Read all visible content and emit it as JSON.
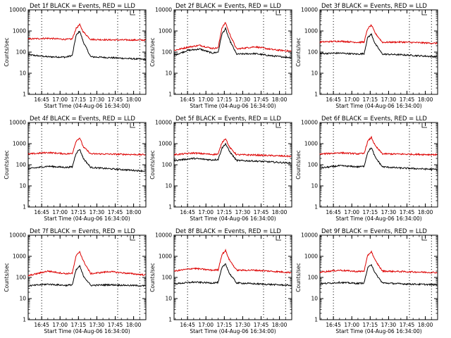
{
  "figure": {
    "panel_count": 9,
    "colors": {
      "events": "#000000",
      "lld": "#dd0000",
      "axes": "#000000",
      "background": "#ffffff"
    }
  },
  "chart_data": [
    {
      "type": "line",
      "title": "Det 1f BLACK = Events, RED = LLD",
      "xlabel": "Start Time (04-Aug-06 16:34:00)",
      "ylabel": "Counts/sec",
      "yscale": "log",
      "ylim": [
        1,
        10000
      ],
      "xlim": [
        "16:34",
        "18:10"
      ],
      "xticks": [
        "16:45",
        "17:00",
        "17:15",
        "17:30",
        "17:45",
        "18:00"
      ],
      "yticks": [
        "1",
        "10",
        "100",
        "1000",
        "10000"
      ],
      "vlines_dotted": [
        "16:45",
        "17:47",
        "18:05"
      ],
      "grid": false,
      "legend": "title",
      "series": [
        {
          "name": "Events",
          "color": "#000000",
          "times": [
            "16:34",
            "16:50",
            "17:05",
            "17:10",
            "17:13",
            "17:16",
            "17:19",
            "17:25",
            "17:40",
            "18:10"
          ],
          "values": [
            75,
            60,
            58,
            70,
            600,
            1000,
            300,
            60,
            55,
            45
          ]
        },
        {
          "name": "LLD",
          "color": "#dd0000",
          "times": [
            "16:34",
            "16:50",
            "17:05",
            "17:10",
            "17:13",
            "17:16",
            "17:19",
            "17:25",
            "17:40",
            "18:10"
          ],
          "values": [
            420,
            450,
            400,
            420,
            1300,
            2000,
            900,
            400,
            380,
            370
          ]
        }
      ]
    },
    {
      "type": "line",
      "title": "Det 2f BLACK = Events, RED = LLD",
      "xlabel": "Start Time (04-Aug-06 16:34:00)",
      "ylabel": "Counts/sec",
      "yscale": "log",
      "ylim": [
        1,
        10000
      ],
      "xlim": [
        "16:34",
        "18:10"
      ],
      "xticks": [
        "16:45",
        "17:00",
        "17:15",
        "17:30",
        "17:45",
        "18:00"
      ],
      "yticks": [
        "1",
        "10",
        "100",
        "1000",
        "10000"
      ],
      "vlines_dotted": [
        "16:45",
        "17:47",
        "18:05"
      ],
      "grid": false,
      "legend": "title",
      "series": [
        {
          "name": "Events",
          "color": "#000000",
          "times": [
            "16:34",
            "16:45",
            "16:55",
            "17:05",
            "17:10",
            "17:13",
            "17:16",
            "17:19",
            "17:25",
            "17:40",
            "17:55",
            "18:10"
          ],
          "values": [
            70,
            120,
            140,
            90,
            100,
            700,
            1300,
            400,
            80,
            85,
            65,
            55
          ]
        },
        {
          "name": "LLD",
          "color": "#dd0000",
          "times": [
            "16:34",
            "16:45",
            "16:55",
            "17:05",
            "17:10",
            "17:13",
            "17:16",
            "17:19",
            "17:25",
            "17:40",
            "17:55",
            "18:10"
          ],
          "values": [
            120,
            170,
            210,
            150,
            160,
            1400,
            2500,
            800,
            140,
            180,
            130,
            110
          ]
        }
      ]
    },
    {
      "type": "line",
      "title": "Det 3f BLACK = Events, RED = LLD",
      "xlabel": "Start Time (04-Aug-06 16:34:00)",
      "ylabel": "Counts/sec",
      "yscale": "log",
      "ylim": [
        1,
        10000
      ],
      "xlim": [
        "16:34",
        "18:10"
      ],
      "xticks": [
        "16:45",
        "17:00",
        "17:15",
        "17:30",
        "17:45",
        "18:00"
      ],
      "yticks": [
        "1",
        "10",
        "100",
        "1000",
        "10000"
      ],
      "vlines_dotted": [
        "16:45",
        "17:47",
        "18:05"
      ],
      "grid": false,
      "legend": "title",
      "series": [
        {
          "name": "Events",
          "color": "#000000",
          "times": [
            "16:34",
            "16:50",
            "17:05",
            "17:10",
            "17:13",
            "17:16",
            "17:19",
            "17:25",
            "17:40",
            "18:10"
          ],
          "values": [
            85,
            90,
            80,
            85,
            500,
            700,
            250,
            80,
            75,
            60
          ]
        },
        {
          "name": "LLD",
          "color": "#dd0000",
          "times": [
            "16:34",
            "16:50",
            "17:05",
            "17:10",
            "17:13",
            "17:16",
            "17:19",
            "17:25",
            "17:40",
            "18:10"
          ],
          "values": [
            300,
            330,
            290,
            300,
            1300,
            1900,
            800,
            290,
            300,
            260
          ]
        }
      ]
    },
    {
      "type": "line",
      "title": "Det 4f BLACK = Events, RED = LLD",
      "xlabel": "Start Time (04-Aug-06 16:34:00)",
      "ylabel": "Counts/sec",
      "yscale": "log",
      "ylim": [
        1,
        10000
      ],
      "xlim": [
        "16:34",
        "18:10"
      ],
      "xticks": [
        "16:45",
        "17:00",
        "17:15",
        "17:30",
        "17:45",
        "18:00"
      ],
      "yticks": [
        "1",
        "10",
        "100",
        "1000",
        "10000"
      ],
      "vlines_dotted": [
        "16:45",
        "17:47",
        "18:05"
      ],
      "grid": false,
      "legend": "title",
      "series": [
        {
          "name": "Events",
          "color": "#000000",
          "times": [
            "16:34",
            "16:50",
            "17:05",
            "17:10",
            "17:13",
            "17:16",
            "17:19",
            "17:25",
            "17:40",
            "18:10"
          ],
          "values": [
            65,
            85,
            75,
            80,
            350,
            550,
            200,
            75,
            65,
            50
          ]
        },
        {
          "name": "LLD",
          "color": "#dd0000",
          "times": [
            "16:34",
            "16:50",
            "17:05",
            "17:10",
            "17:13",
            "17:16",
            "17:19",
            "17:25",
            "17:40",
            "18:10"
          ],
          "values": [
            320,
            380,
            330,
            340,
            1300,
            1900,
            700,
            330,
            320,
            300
          ]
        }
      ]
    },
    {
      "type": "line",
      "title": "Det 5f BLACK = Events, RED = LLD",
      "xlabel": "Start Time (04-Aug-06 16:34:00)",
      "ylabel": "Counts/sec",
      "yscale": "log",
      "ylim": [
        1,
        10000
      ],
      "xlim": [
        "16:34",
        "18:10"
      ],
      "xticks": [
        "16:45",
        "17:00",
        "17:15",
        "17:30",
        "17:45",
        "18:00"
      ],
      "yticks": [
        "1",
        "10",
        "100",
        "1000",
        "10000"
      ],
      "vlines_dotted": [
        "16:45",
        "17:47",
        "18:05"
      ],
      "grid": false,
      "legend": "title",
      "series": [
        {
          "name": "Events",
          "color": "#000000",
          "times": [
            "16:34",
            "16:50",
            "17:05",
            "17:10",
            "17:13",
            "17:16",
            "17:19",
            "17:25",
            "17:40",
            "18:10"
          ],
          "values": [
            160,
            200,
            170,
            180,
            600,
            1000,
            450,
            160,
            150,
            120
          ]
        },
        {
          "name": "LLD",
          "color": "#dd0000",
          "times": [
            "16:34",
            "16:50",
            "17:05",
            "17:10",
            "17:13",
            "17:16",
            "17:19",
            "17:25",
            "17:40",
            "18:10"
          ],
          "values": [
            300,
            360,
            310,
            320,
            1100,
            1800,
            700,
            300,
            290,
            250
          ]
        }
      ]
    },
    {
      "type": "line",
      "title": "Det 6f BLACK = Events, RED = LLD",
      "xlabel": "Start Time (04-Aug-06 16:34:00)",
      "ylabel": "Counts/sec",
      "yscale": "log",
      "ylim": [
        1,
        10000
      ],
      "xlim": [
        "16:34",
        "18:10"
      ],
      "xticks": [
        "16:45",
        "17:00",
        "17:15",
        "17:30",
        "17:45",
        "18:00"
      ],
      "yticks": [
        "1",
        "10",
        "100",
        "1000",
        "10000"
      ],
      "vlines_dotted": [
        "16:45",
        "17:47",
        "18:05"
      ],
      "grid": false,
      "legend": "title",
      "series": [
        {
          "name": "Events",
          "color": "#000000",
          "times": [
            "16:34",
            "16:50",
            "17:05",
            "17:10",
            "17:13",
            "17:16",
            "17:19",
            "17:25",
            "17:40",
            "18:10"
          ],
          "values": [
            70,
            90,
            80,
            85,
            400,
            650,
            230,
            80,
            70,
            60
          ]
        },
        {
          "name": "LLD",
          "color": "#dd0000",
          "times": [
            "16:34",
            "16:50",
            "17:05",
            "17:10",
            "17:13",
            "17:16",
            "17:19",
            "17:25",
            "17:40",
            "18:10"
          ],
          "values": [
            320,
            370,
            330,
            340,
            1300,
            2000,
            800,
            330,
            320,
            300
          ]
        }
      ]
    },
    {
      "type": "line",
      "title": "Det 7f BLACK = Events, RED = LLD",
      "xlabel": "Start Time (04-Aug-06 16:34:00)",
      "ylabel": "Counts/sec",
      "yscale": "log",
      "ylim": [
        1,
        10000
      ],
      "xlim": [
        "16:34",
        "18:10"
      ],
      "xticks": [
        "16:45",
        "17:00",
        "17:15",
        "17:30",
        "17:45",
        "18:00"
      ],
      "yticks": [
        "1",
        "10",
        "100",
        "1000",
        "10000"
      ],
      "vlines_dotted": [
        "16:45",
        "17:47",
        "18:05"
      ],
      "grid": false,
      "legend": "title",
      "series": [
        {
          "name": "Events",
          "color": "#000000",
          "times": [
            "16:34",
            "16:50",
            "17:05",
            "17:10",
            "17:13",
            "17:16",
            "17:19",
            "17:25",
            "17:40",
            "18:10"
          ],
          "values": [
            40,
            48,
            42,
            45,
            220,
            350,
            120,
            42,
            45,
            40
          ]
        },
        {
          "name": "LLD",
          "color": "#dd0000",
          "times": [
            "16:34",
            "16:50",
            "17:05",
            "17:10",
            "17:13",
            "17:16",
            "17:19",
            "17:25",
            "17:40",
            "18:10"
          ],
          "values": [
            120,
            200,
            150,
            160,
            1000,
            1700,
            600,
            150,
            190,
            130
          ]
        }
      ]
    },
    {
      "type": "line",
      "title": "Det 8f BLACK = Events, RED = LLD",
      "xlabel": "Start Time (04-Aug-06 16:34:00)",
      "ylabel": "Counts/sec",
      "yscale": "log",
      "ylim": [
        1,
        10000
      ],
      "xlim": [
        "16:34",
        "18:10"
      ],
      "xticks": [
        "16:45",
        "17:00",
        "17:15",
        "17:30",
        "17:45",
        "18:00"
      ],
      "yticks": [
        "1",
        "10",
        "100",
        "1000",
        "10000"
      ],
      "vlines_dotted": [
        "16:45",
        "17:47",
        "18:05"
      ],
      "grid": false,
      "legend": "title",
      "series": [
        {
          "name": "Events",
          "color": "#000000",
          "times": [
            "16:34",
            "16:50",
            "17:05",
            "17:10",
            "17:13",
            "17:16",
            "17:19",
            "17:25",
            "17:40",
            "18:10"
          ],
          "values": [
            50,
            60,
            55,
            58,
            280,
            450,
            160,
            55,
            50,
            42
          ]
        },
        {
          "name": "LLD",
          "color": "#dd0000",
          "times": [
            "16:34",
            "16:50",
            "17:05",
            "17:10",
            "17:13",
            "17:16",
            "17:19",
            "17:25",
            "17:40",
            "18:10"
          ],
          "values": [
            200,
            270,
            220,
            230,
            1200,
            1900,
            700,
            220,
            220,
            170
          ]
        }
      ]
    },
    {
      "type": "line",
      "title": "Det 9f BLACK = Events, RED = LLD",
      "xlabel": "Start Time (04-Aug-06 16:34:00)",
      "ylabel": "Counts/sec",
      "yscale": "log",
      "ylim": [
        1,
        10000
      ],
      "xlim": [
        "16:34",
        "18:10"
      ],
      "xticks": [
        "16:45",
        "17:00",
        "17:15",
        "17:30",
        "17:45",
        "18:00"
      ],
      "yticks": [
        "1",
        "10",
        "100",
        "1000",
        "10000"
      ],
      "vlines_dotted": [
        "16:45",
        "17:47",
        "18:05"
      ],
      "grid": false,
      "legend": "title",
      "series": [
        {
          "name": "Events",
          "color": "#000000",
          "times": [
            "16:34",
            "16:50",
            "17:05",
            "17:10",
            "17:13",
            "17:16",
            "17:19",
            "17:25",
            "17:40",
            "18:10"
          ],
          "values": [
            50,
            58,
            52,
            55,
            280,
            420,
            160,
            55,
            50,
            45
          ]
        },
        {
          "name": "LLD",
          "color": "#dd0000",
          "times": [
            "16:34",
            "16:50",
            "17:05",
            "17:10",
            "17:13",
            "17:16",
            "17:19",
            "17:25",
            "17:40",
            "18:10"
          ],
          "values": [
            180,
            220,
            190,
            200,
            1100,
            1700,
            650,
            200,
            190,
            170
          ]
        }
      ]
    }
  ]
}
